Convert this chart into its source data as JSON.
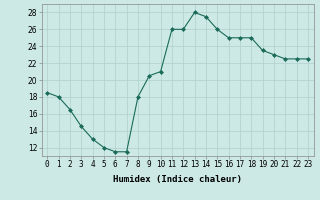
{
  "x": [
    0,
    1,
    2,
    3,
    4,
    5,
    6,
    7,
    8,
    9,
    10,
    11,
    12,
    13,
    14,
    15,
    16,
    17,
    18,
    19,
    20,
    21,
    22,
    23
  ],
  "y": [
    18.5,
    18.0,
    16.5,
    14.5,
    13.0,
    12.0,
    11.5,
    11.5,
    18.0,
    20.5,
    21.0,
    26.0,
    26.0,
    28.0,
    27.5,
    26.0,
    25.0,
    25.0,
    25.0,
    23.5,
    23.0,
    22.5,
    22.5,
    22.5
  ],
  "line_color": "#1a6b5a",
  "marker": "D",
  "marker_size": 2.0,
  "bg_color": "#cde9e5",
  "grid_color": "#b0d0ca",
  "xlabel": "Humidex (Indice chaleur)",
  "xlim": [
    -0.5,
    23.5
  ],
  "ylim": [
    11,
    29
  ],
  "yticks": [
    12,
    14,
    16,
    18,
    20,
    22,
    24,
    26,
    28
  ],
  "xticks": [
    0,
    1,
    2,
    3,
    4,
    5,
    6,
    7,
    8,
    9,
    10,
    11,
    12,
    13,
    14,
    15,
    16,
    17,
    18,
    19,
    20,
    21,
    22,
    23
  ],
  "xtick_labels": [
    "0",
    "1",
    "2",
    "3",
    "4",
    "5",
    "6",
    "7",
    "8",
    "9",
    "10",
    "11",
    "12",
    "13",
    "14",
    "15",
    "16",
    "17",
    "18",
    "19",
    "20",
    "21",
    "22",
    "23"
  ],
  "label_fontsize": 6.5,
  "tick_fontsize": 5.5
}
